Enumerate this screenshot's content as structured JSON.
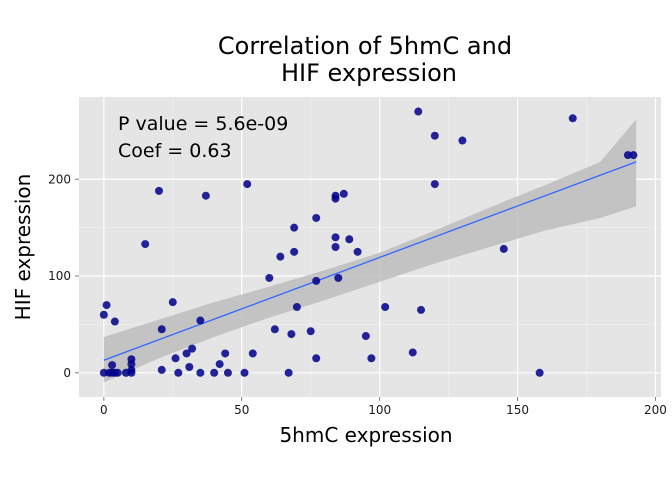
{
  "chart_data": {
    "type": "scatter",
    "title_lines": [
      "Correlation of 5hmC and",
      "HIF expression"
    ],
    "xlabel": "5hmC expression",
    "ylabel": "HIF expression",
    "xlim": [
      -9,
      202
    ],
    "ylim": [
      -25,
      285
    ],
    "x_ticks": [
      0,
      50,
      100,
      150,
      200
    ],
    "y_ticks": [
      0,
      100,
      200
    ],
    "annotations": [
      "P value = 5.6e-09",
      "Coef = 0.63"
    ],
    "grid": true,
    "colors": {
      "panel_background": "#e5e5e5",
      "grid_major": "#ffffff",
      "point": "#00008b",
      "fit_line": "#3366ff",
      "confidence_band": "#bdbdbd"
    },
    "fit_line": {
      "x": [
        0,
        193
      ],
      "y": [
        13,
        218
      ]
    },
    "confidence_band": {
      "x": [
        0,
        20,
        40,
        60,
        80,
        100,
        120,
        140,
        160,
        180,
        193
      ],
      "upper": [
        37,
        55,
        73,
        89,
        106,
        124,
        147,
        171,
        194,
        218,
        262
      ],
      "lower": [
        -10,
        15,
        37,
        57,
        75,
        94,
        113,
        130,
        147,
        160,
        172
      ]
    },
    "points": [
      [
        0,
        0
      ],
      [
        0,
        60
      ],
      [
        1,
        70
      ],
      [
        2,
        0
      ],
      [
        3,
        8
      ],
      [
        3,
        0
      ],
      [
        4,
        0
      ],
      [
        4,
        53
      ],
      [
        5,
        0
      ],
      [
        8,
        0
      ],
      [
        10,
        3
      ],
      [
        10,
        9
      ],
      [
        10,
        14
      ],
      [
        10,
        0
      ],
      [
        15,
        133
      ],
      [
        20,
        188
      ],
      [
        21,
        45
      ],
      [
        21,
        3
      ],
      [
        25,
        73
      ],
      [
        26,
        15
      ],
      [
        27,
        0
      ],
      [
        30,
        20
      ],
      [
        31,
        6
      ],
      [
        32,
        25
      ],
      [
        35,
        54
      ],
      [
        35,
        0
      ],
      [
        37,
        183
      ],
      [
        40,
        0
      ],
      [
        42,
        9
      ],
      [
        44,
        20
      ],
      [
        45,
        0
      ],
      [
        51,
        0
      ],
      [
        52,
        195
      ],
      [
        54,
        20
      ],
      [
        60,
        98
      ],
      [
        62,
        45
      ],
      [
        64,
        120
      ],
      [
        67,
        0
      ],
      [
        68,
        40
      ],
      [
        69,
        150
      ],
      [
        69,
        125
      ],
      [
        70,
        68
      ],
      [
        75,
        43
      ],
      [
        77,
        160
      ],
      [
        77,
        15
      ],
      [
        77,
        95
      ],
      [
        84,
        183
      ],
      [
        84,
        180
      ],
      [
        84,
        140
      ],
      [
        84,
        130
      ],
      [
        85,
        98
      ],
      [
        87,
        185
      ],
      [
        89,
        138
      ],
      [
        92,
        125
      ],
      [
        95,
        38
      ],
      [
        97,
        15
      ],
      [
        102,
        68
      ],
      [
        112,
        21
      ],
      [
        114,
        270
      ],
      [
        115,
        65
      ],
      [
        120,
        245
      ],
      [
        120,
        195
      ],
      [
        130,
        240
      ],
      [
        145,
        128
      ],
      [
        158,
        0
      ],
      [
        170,
        263
      ],
      [
        190,
        225
      ],
      [
        192,
        225
      ]
    ]
  }
}
